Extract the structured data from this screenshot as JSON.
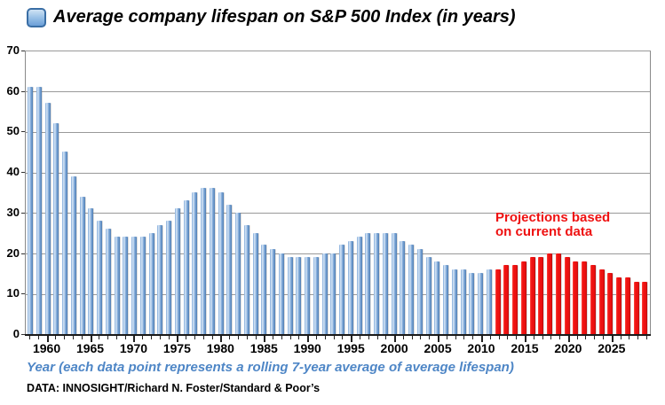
{
  "header": {
    "title": "Average company lifespan on S&P 500 Index (in years)"
  },
  "annotation": {
    "text": "Projections based\non current data"
  },
  "caption": "Year (each data point represents a rolling 7-year average of average lifespan)",
  "source": "DATA: INNOSIGHT/Richard N. Foster/Standard & Poor’s",
  "colors": {
    "historical_bar": "#7fa9d9",
    "historical_bar_dark": "#4e7cb2",
    "projection_bar": "#ee1111",
    "annotation_text": "#ee1111",
    "caption_text": "#4e86c6",
    "gridline": "#999999"
  },
  "chart_data": {
    "type": "bar",
    "title": "Average company lifespan on S&P 500 Index (in years)",
    "xlabel": "Year (each data point represents a rolling 7-year average of average lifespan)",
    "ylabel": "",
    "ylim": [
      0,
      70
    ],
    "ytick_step": 10,
    "grid": true,
    "start_year": 1958,
    "projection_start_year": 2012,
    "xtick_labels": [
      1960,
      1965,
      1970,
      1975,
      1980,
      1985,
      1990,
      1995,
      2000,
      2005,
      2010,
      2015,
      2020,
      2025
    ],
    "series": [
      {
        "name": "historical",
        "years": [
          1958,
          1959,
          1960,
          1961,
          1962,
          1963,
          1964,
          1965,
          1966,
          1967,
          1968,
          1969,
          1970,
          1971,
          1972,
          1973,
          1974,
          1975,
          1976,
          1977,
          1978,
          1979,
          1980,
          1981,
          1982,
          1983,
          1984,
          1985,
          1986,
          1987,
          1988,
          1989,
          1990,
          1991,
          1992,
          1993,
          1994,
          1995,
          1996,
          1997,
          1998,
          1999,
          2000,
          2001,
          2002,
          2003,
          2004,
          2005,
          2006,
          2007,
          2008,
          2009,
          2010,
          2011
        ],
        "values": [
          61,
          61,
          57,
          52,
          45,
          39,
          34,
          31,
          28,
          26,
          24,
          24,
          24,
          24,
          25,
          27,
          28,
          31,
          33,
          35,
          36,
          36,
          35,
          32,
          30,
          27,
          25,
          22,
          21,
          20,
          19,
          19,
          19,
          19,
          20,
          20,
          22,
          23,
          24,
          25,
          25,
          25,
          25,
          23,
          22,
          21,
          19,
          18,
          17,
          16,
          16,
          15,
          15,
          16
        ]
      },
      {
        "name": "projection",
        "years": [
          2012,
          2013,
          2014,
          2015,
          2016,
          2017,
          2018,
          2019,
          2020,
          2021,
          2022,
          2023,
          2024,
          2025,
          2026,
          2027,
          2028,
          2029
        ],
        "values": [
          16,
          17,
          17,
          18,
          19,
          19,
          20,
          20,
          19,
          18,
          18,
          17,
          16,
          15,
          14,
          14,
          13,
          13
        ]
      }
    ]
  }
}
